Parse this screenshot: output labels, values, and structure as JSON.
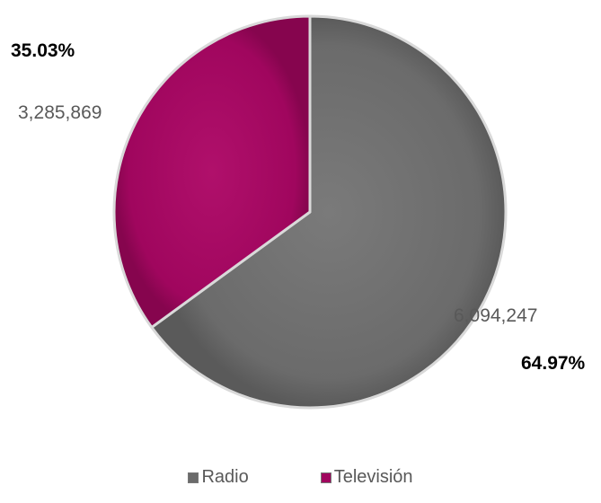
{
  "chart_data": {
    "type": "pie",
    "categories": [
      "Radio",
      "Televisión"
    ],
    "values": [
      6094247,
      3285869
    ],
    "value_labels": [
      "6,094,247",
      "3,285,869"
    ],
    "percent_labels": [
      "64.97%",
      "35.03%"
    ],
    "colors": [
      "#6b6b6b",
      "#a0065e"
    ],
    "title": "",
    "legend_position": "bottom"
  },
  "legend": {
    "items": [
      {
        "label": "Radio",
        "color": "#6b6b6b"
      },
      {
        "label": "Televisión",
        "color": "#a0065e"
      }
    ]
  }
}
